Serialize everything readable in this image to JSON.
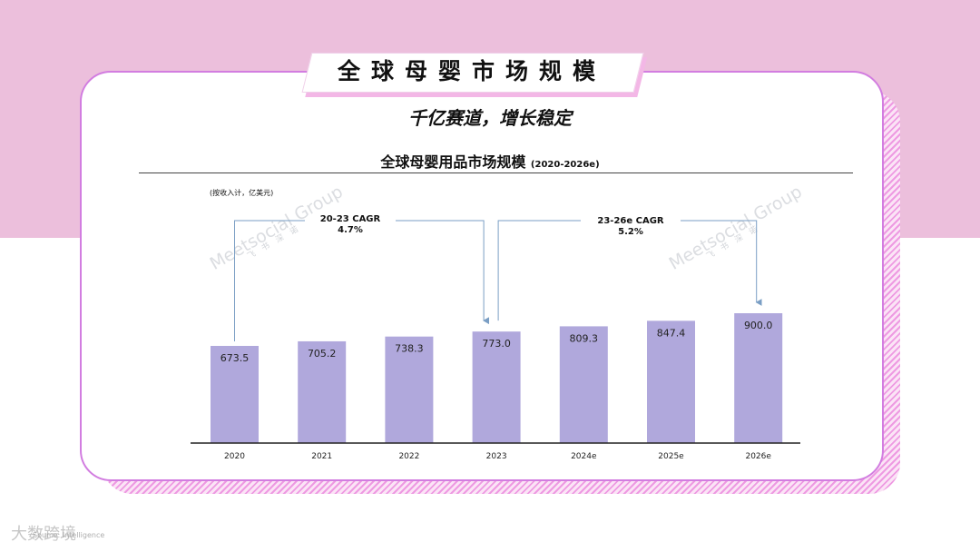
{
  "header": {
    "title": "全球母婴市场规模",
    "subtitle": "千亿赛道，增长稳定"
  },
  "chart_data": {
    "type": "bar",
    "title": "全球母婴用品市场规模",
    "title_period": "(2020-2026e)",
    "unit_note": "(按收入计，亿美元)",
    "categories": [
      "2020",
      "2021",
      "2022",
      "2023",
      "2024e",
      "2025e",
      "2026e"
    ],
    "values": [
      673.5,
      705.2,
      738.3,
      773.0,
      809.3,
      847.4,
      900.0
    ],
    "value_labels": [
      "673.5",
      "705.2",
      "738.3",
      "773.0",
      "809.3",
      "847.4",
      "900.0"
    ],
    "bar_color": "#b0a8dc",
    "ylim": [
      0,
      900
    ],
    "legend": "none",
    "grid": false,
    "annotations": [
      {
        "label": "20-23 CAGR",
        "value": "4.7%",
        "from": "2020",
        "to": "2023"
      },
      {
        "label": "23-26e CAGR",
        "value": "5.2%",
        "from": "2023",
        "to": "2026e"
      }
    ]
  },
  "watermark": {
    "brand": "Meetsocial Group",
    "cn": "飞书深诺"
  },
  "footer": {
    "logo": "大数跨境",
    "text": "Source: Intelligence"
  },
  "colors": {
    "top_band": "#ecbfdc",
    "card_border": "#d27de0",
    "hatch": "#ee9ae2",
    "arrow": "#7a9ec4"
  }
}
